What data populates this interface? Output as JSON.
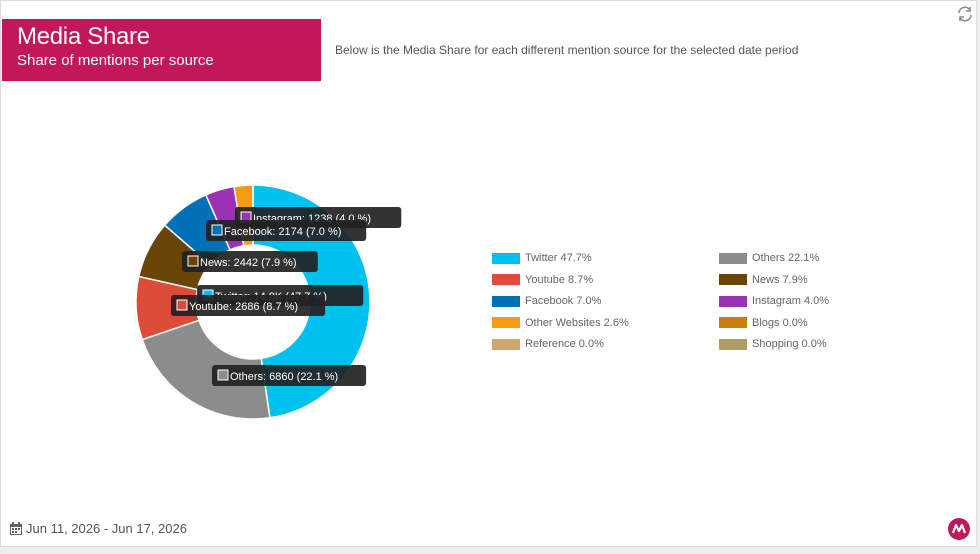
{
  "header": {
    "title": "Media Share",
    "subtitle": "Share of mentions per source",
    "description": "Below is the Media Share for each different mention source for the selected date period"
  },
  "footer": {
    "date_range": "Jun 11, 2026 - Jun 17, 2026"
  },
  "colors": {
    "title_bg": "#c2185b"
  },
  "chart_data": {
    "type": "pie",
    "donut": true,
    "slices": [
      {
        "name": "Twitter",
        "value_label": "14.8K",
        "value": 14800,
        "percent": 47.7,
        "color": "#00c0ef"
      },
      {
        "name": "Others",
        "value_label": "6860",
        "value": 6860,
        "percent": 22.1,
        "color": "#8c8c8c"
      },
      {
        "name": "Youtube",
        "value_label": "2686",
        "value": 2686,
        "percent": 8.7,
        "color": "#dd4b39"
      },
      {
        "name": "News",
        "value_label": "2442",
        "value": 2442,
        "percent": 7.9,
        "color": "#6b4507"
      },
      {
        "name": "Facebook",
        "value_label": "2174",
        "value": 2174,
        "percent": 7.0,
        "color": "#0070b7"
      },
      {
        "name": "Instagram",
        "value_label": "1238",
        "value": 1238,
        "percent": 4.0,
        "color": "#9b32b5"
      },
      {
        "name": "Other Websites",
        "value_label": "",
        "value": 806,
        "percent": 2.6,
        "color": "#f39c12"
      },
      {
        "name": "Blogs",
        "value_label": "",
        "value": 0,
        "percent": 0.0,
        "color": "#c87f0a"
      },
      {
        "name": "Reference",
        "value_label": "",
        "value": 0,
        "percent": 0.0,
        "color": "#d1a66e"
      },
      {
        "name": "Shopping",
        "value_label": "",
        "value": 0,
        "percent": 0.0,
        "color": "#b09d64"
      }
    ],
    "legend": [
      {
        "label": "Twitter 47.7%",
        "color": "#00c0ef"
      },
      {
        "label": "Others 22.1%",
        "color": "#8c8c8c"
      },
      {
        "label": "Youtube 8.7%",
        "color": "#dd4b39"
      },
      {
        "label": "News 7.9%",
        "color": "#6b4507"
      },
      {
        "label": "Facebook 7.0%",
        "color": "#0070b7"
      },
      {
        "label": "Instagram 4.0%",
        "color": "#9b32b5"
      },
      {
        "label": "Other Websites 2.6%",
        "color": "#f39c12"
      },
      {
        "label": "Blogs 0.0%",
        "color": "#c87f0a"
      },
      {
        "label": "Reference 0.0%",
        "color": "#d1a66e"
      },
      {
        "label": "Shopping 0.0%",
        "color": "#b09d64"
      }
    ],
    "tooltips": [
      {
        "slice": "Instagram",
        "text": "Instagram: 1238 (4.0 %)"
      },
      {
        "slice": "Facebook",
        "text": "Facebook: 2174 (7.0 %)"
      },
      {
        "slice": "News",
        "text": "News: 2442 (7.9 %)"
      },
      {
        "slice": "Twitter",
        "text": "Twitter: 14.8K (47.7 %)"
      },
      {
        "slice": "Youtube",
        "text": "Youtube: 2686 (8.7 %)"
      },
      {
        "slice": "Others",
        "text": "Others: 6860 (22.1 %)"
      }
    ]
  }
}
